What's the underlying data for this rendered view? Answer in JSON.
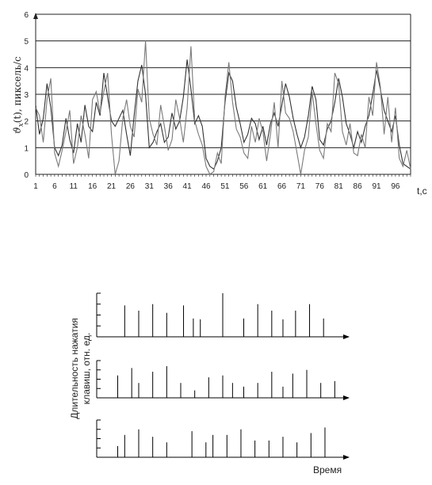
{
  "chart_data": [
    {
      "type": "line",
      "title": "",
      "xlabel": "t,c",
      "ylabel_symbol": "ϑ",
      "ylabel_subscript": "x",
      "ylabel_rest": "(t), пиксель/с",
      "xlim": [
        1,
        100
      ],
      "ylim": [
        0,
        6
      ],
      "y_ticks": [
        "0",
        "1",
        "2",
        "3",
        "4",
        "5",
        "6"
      ],
      "x_ticks": [
        "1",
        "6",
        "11",
        "16",
        "21",
        "26",
        "31",
        "36",
        "41",
        "46",
        "51",
        "56",
        "61",
        "66",
        "71",
        "76",
        "81",
        "86",
        "91",
        "96"
      ],
      "grid": true,
      "line_color": "#333333",
      "series": [
        {
          "values": [
            2.6,
            1.5,
            2.1,
            3.4,
            2.5,
            1.0,
            0.7,
            1.1,
            2.1,
            1.3,
            0.8,
            1.9,
            1.2,
            2.6,
            1.8,
            1.6,
            2.7,
            2.2,
            3.8,
            2.9,
            2.0,
            1.8,
            2.1,
            2.4,
            1.5,
            0.7,
            2.2,
            3.5,
            4.1,
            3.0,
            1.0,
            1.2,
            1.6,
            1.9,
            1.2,
            1.4,
            2.3,
            1.7,
            2.0,
            2.9,
            4.3,
            3.2,
            1.9,
            2.2,
            1.8,
            0.6,
            0.3,
            0.2,
            0.5,
            1.0,
            2.7,
            3.8,
            3.5,
            2.5,
            1.9,
            1.2,
            1.5,
            2.1,
            1.9,
            1.3,
            1.8,
            1.1,
            1.9,
            2.3,
            1.8,
            2.6,
            3.4,
            2.9,
            2.1,
            1.5,
            1.0,
            1.4,
            2.2,
            3.3,
            2.8,
            1.3,
            1.1,
            1.7,
            2.0,
            2.7,
            3.6,
            2.9,
            1.9,
            1.5,
            1.0,
            1.6,
            1.2,
            1.8,
            2.2,
            3.0,
            3.9,
            3.2,
            2.4,
            2.0,
            1.6,
            2.2,
            1.1,
            0.4,
            0.3,
            0.2
          ]
        },
        {
          "values": [
            2.5,
            2.2,
            1.2,
            2.8,
            3.6,
            0.8,
            0.3,
            0.9,
            1.6,
            2.4,
            0.4,
            1.0,
            2.2,
            1.5,
            0.6,
            2.8,
            3.1,
            2.3,
            3.1,
            3.8,
            1.5,
            0.0,
            0.5,
            2.1,
            2.8,
            1.8,
            1.4,
            3.2,
            2.7,
            5.0,
            2.1,
            1.5,
            1.1,
            2.6,
            1.8,
            0.9,
            1.3,
            2.8,
            2.1,
            1.2,
            2.5,
            4.8,
            2.0,
            1.5,
            1.1,
            0.3,
            0.0,
            0.1,
            0.8,
            0.4,
            2.9,
            4.2,
            2.7,
            1.7,
            1.4,
            0.8,
            0.6,
            1.8,
            1.2,
            2.1,
            1.6,
            0.5,
            1.5,
            2.7,
            1.0,
            3.5,
            2.3,
            2.1,
            1.6,
            0.8,
            0.0,
            0.9,
            1.4,
            3.1,
            1.9,
            0.9,
            0.6,
            1.9,
            1.6,
            3.8,
            3.4,
            1.6,
            1.1,
            1.9,
            0.8,
            0.7,
            1.5,
            1.0,
            2.9,
            2.2,
            4.2,
            3.3,
            1.5,
            2.9,
            1.2,
            2.5,
            0.6,
            0.3,
            0.9,
            0.2
          ]
        }
      ]
    },
    {
      "type": "bar",
      "subtype": "event-impulses",
      "xlabel": "Время",
      "ylabel_line1": "Длительность нажатия",
      "ylabel_line2": "клавиш, отн. ед.",
      "bar_color": "#000000",
      "y_tick_count": 4,
      "panels": [
        {
          "events": [
            {
              "t": 2.0,
              "h": 0.72
            },
            {
              "t": 3.0,
              "h": 0.6
            },
            {
              "t": 4.0,
              "h": 0.75
            },
            {
              "t": 5.0,
              "h": 0.55
            },
            {
              "t": 6.2,
              "h": 0.72
            },
            {
              "t": 6.9,
              "h": 0.42
            },
            {
              "t": 7.4,
              "h": 0.4
            },
            {
              "t": 9.0,
              "h": 1.0
            },
            {
              "t": 10.5,
              "h": 0.42
            },
            {
              "t": 11.5,
              "h": 0.75
            },
            {
              "t": 12.5,
              "h": 0.6
            },
            {
              "t": 13.3,
              "h": 0.4
            },
            {
              "t": 14.2,
              "h": 0.6
            },
            {
              "t": 15.2,
              "h": 0.75
            },
            {
              "t": 16.2,
              "h": 0.42
            }
          ]
        },
        {
          "events": [
            {
              "t": 1.5,
              "h": 0.6
            },
            {
              "t": 2.5,
              "h": 0.8
            },
            {
              "t": 3.0,
              "h": 0.4
            },
            {
              "t": 4.0,
              "h": 0.7
            },
            {
              "t": 5.0,
              "h": 0.85
            },
            {
              "t": 6.0,
              "h": 0.4
            },
            {
              "t": 7.0,
              "h": 0.2
            },
            {
              "t": 8.0,
              "h": 0.55
            },
            {
              "t": 9.0,
              "h": 0.6
            },
            {
              "t": 9.7,
              "h": 0.4
            },
            {
              "t": 10.5,
              "h": 0.3
            },
            {
              "t": 11.5,
              "h": 0.4
            },
            {
              "t": 12.5,
              "h": 0.7
            },
            {
              "t": 13.3,
              "h": 0.3
            },
            {
              "t": 14.0,
              "h": 0.65
            },
            {
              "t": 15.0,
              "h": 0.75
            },
            {
              "t": 16.0,
              "h": 0.4
            },
            {
              "t": 17.0,
              "h": 0.45
            }
          ]
        },
        {
          "events": [
            {
              "t": 1.5,
              "h": 0.3
            },
            {
              "t": 2.0,
              "h": 0.6
            },
            {
              "t": 3.0,
              "h": 0.75
            },
            {
              "t": 4.0,
              "h": 0.55
            },
            {
              "t": 5.0,
              "h": 0.4
            },
            {
              "t": 6.8,
              "h": 0.7
            },
            {
              "t": 7.8,
              "h": 0.4
            },
            {
              "t": 8.3,
              "h": 0.6
            },
            {
              "t": 9.3,
              "h": 0.6
            },
            {
              "t": 10.3,
              "h": 0.75
            },
            {
              "t": 11.3,
              "h": 0.45
            },
            {
              "t": 12.3,
              "h": 0.45
            },
            {
              "t": 13.3,
              "h": 0.55
            },
            {
              "t": 14.3,
              "h": 0.4
            },
            {
              "t": 15.3,
              "h": 0.65
            },
            {
              "t": 16.3,
              "h": 0.8
            }
          ]
        }
      ]
    }
  ]
}
